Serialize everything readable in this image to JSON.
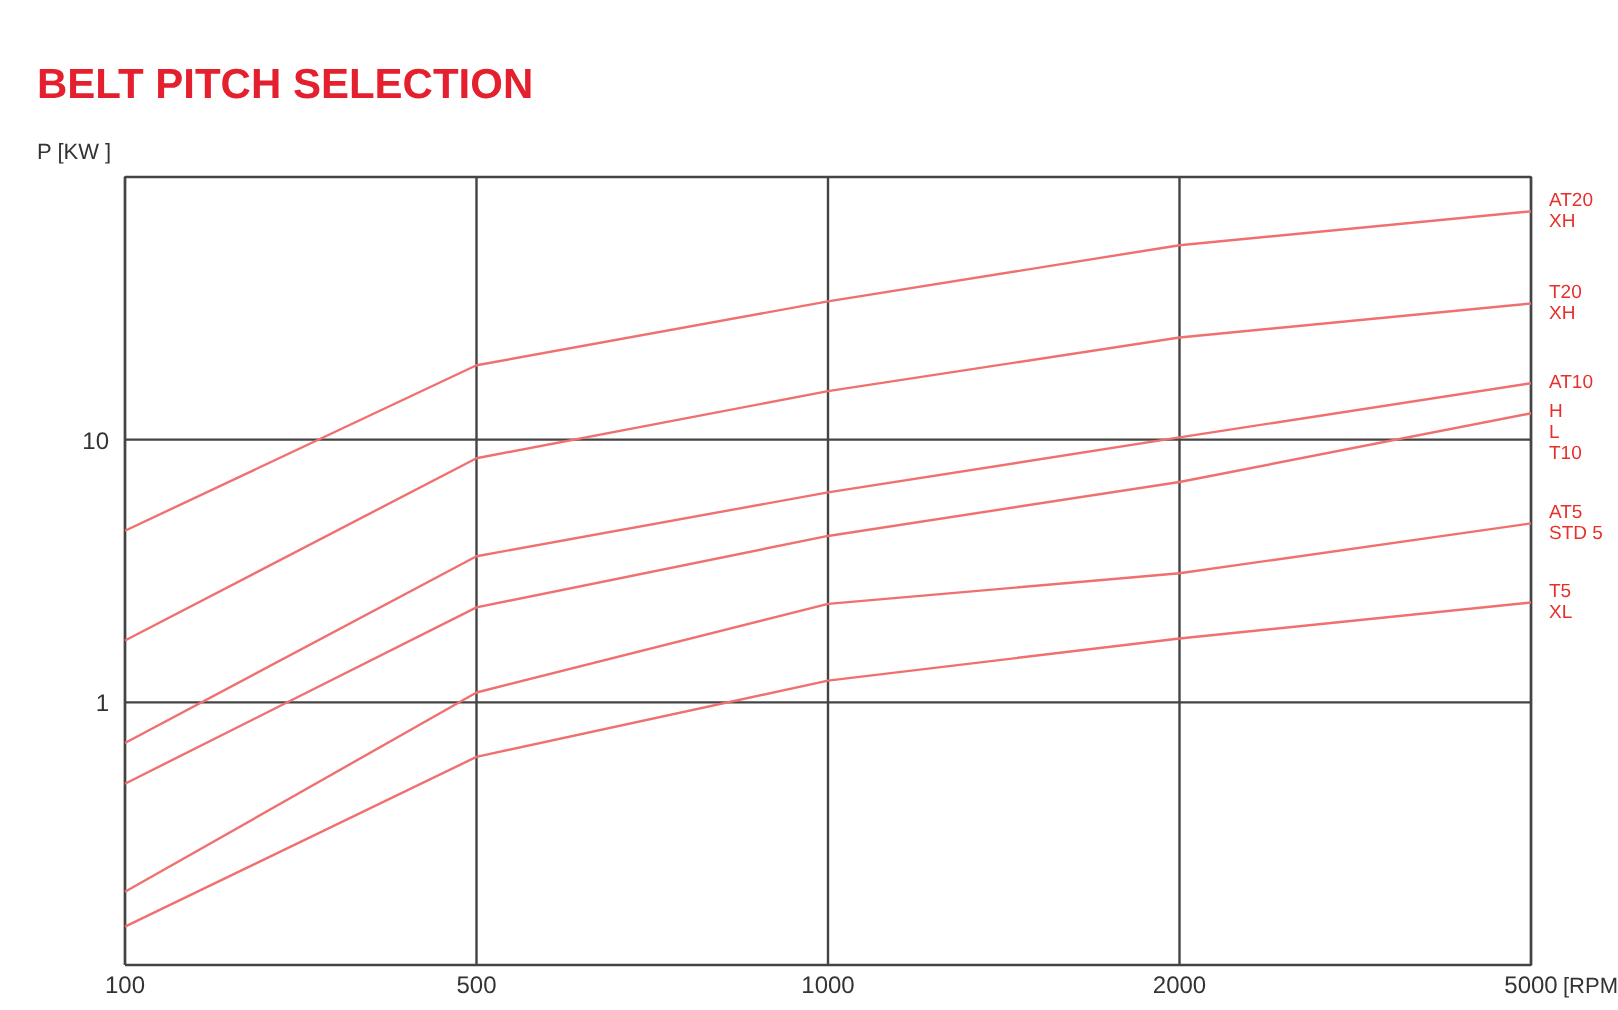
{
  "chart_data": {
    "type": "line",
    "title": "BELT PITCH SELECTION",
    "ylabel": "P [KW ]",
    "xlabel": "[RPM",
    "categories": [
      "100",
      "500",
      "1000",
      "2000",
      "5000"
    ],
    "log": "y",
    "ylim": [
      0.1,
      100
    ],
    "yticks": [
      1,
      10
    ],
    "grid": true,
    "marker": "none",
    "line_style": "solid",
    "series": [
      {
        "name": "AT20\nXH",
        "color": "#f07070",
        "values": [
          4.5,
          19.2,
          33.6,
          55,
          74
        ]
      },
      {
        "name": "T20\nXH",
        "color": "#f07070",
        "values": [
          1.72,
          8.5,
          15.3,
          24.5,
          33
        ]
      },
      {
        "name": "AT10",
        "color": "#f07070",
        "values": [
          0.7,
          3.6,
          6.3,
          10.2,
          16.4
        ]
      },
      {
        "name": "H\nL\nT10",
        "color": "#f07070",
        "values": [
          0.49,
          2.3,
          4.3,
          6.9,
          12.6
        ]
      },
      {
        "name": "AT5\nSTD 5",
        "color": "#f07070",
        "values": [
          0.19,
          1.09,
          2.37,
          3.1,
          4.8
        ]
      },
      {
        "name": "T5\nXL",
        "color": "#f07070",
        "values": [
          0.14,
          0.62,
          1.21,
          1.75,
          2.4
        ]
      }
    ]
  }
}
